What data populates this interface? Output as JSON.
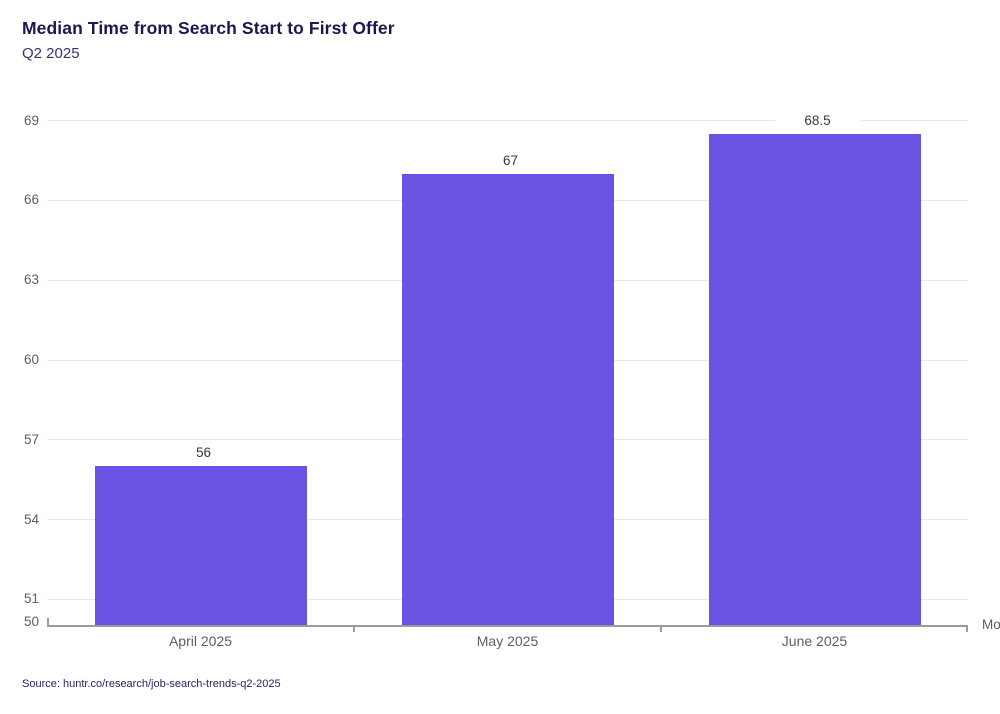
{
  "header": {
    "title": "Median Time from Search Start to First Offer",
    "subtitle": "Q2 2025"
  },
  "chart_data": {
    "type": "bar",
    "title": "Median Time from Search Start to First Offer",
    "subtitle": "Q2 2025",
    "categories": [
      "April 2025",
      "May 2025",
      "June 2025"
    ],
    "values": [
      56,
      67,
      68.5
    ],
    "value_labels": [
      "56",
      "67",
      "68.5"
    ],
    "xlabel": "Month",
    "ylabel": "",
    "ylim": [
      50,
      69
    ],
    "yticks": [
      50,
      51,
      54,
      57,
      60,
      63,
      66,
      69
    ],
    "grid": "horizontal-only",
    "legend": "none",
    "bar_color": "#6A52E2"
  },
  "footer": {
    "source": "Source: huntr.co/research/job-search-trends-q2-2025"
  },
  "colors": {
    "title": "#1C1653",
    "subtitle": "#393075",
    "bar": "#6A52E2",
    "gridline": "#E8E8E8",
    "axis_line": "#9B9B9B",
    "tick_label": "#5E5E5E",
    "value_label": "#3A3A3A",
    "source_text": "#2A2363",
    "background": "#FFFFFF"
  }
}
